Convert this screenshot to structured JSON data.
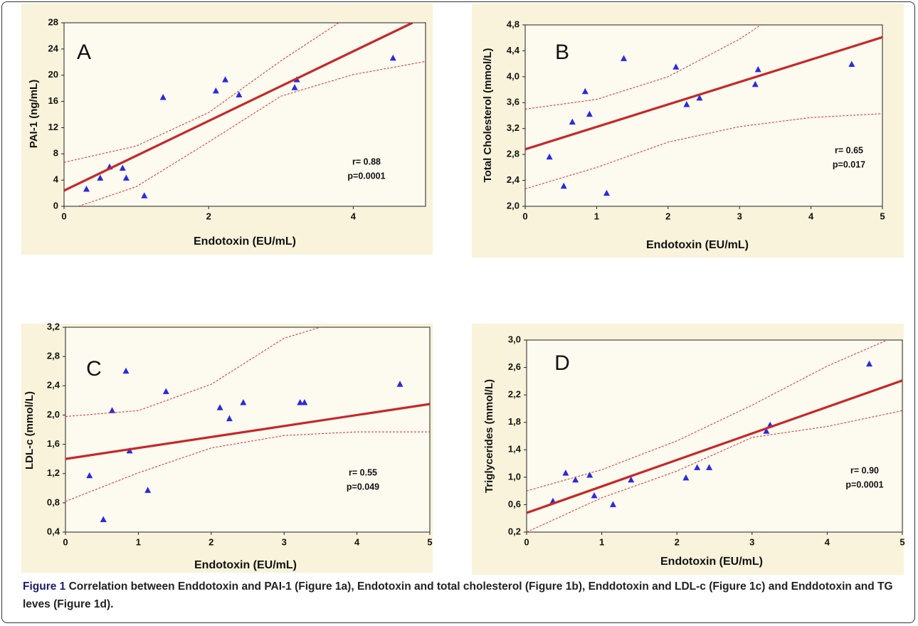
{
  "chart_data": [
    {
      "type": "scatter",
      "panel_label": "A",
      "xlabel": "Endotoxin (EU/mL)",
      "ylabel": "PAI-1 (ng/mL)",
      "xlim": [
        0,
        5
      ],
      "ylim": [
        0,
        28
      ],
      "xticks": [
        0,
        2,
        4
      ],
      "yticks": [
        0,
        4,
        8,
        12,
        16,
        20,
        24,
        28
      ],
      "annotations": [
        "r=  0.88",
        "p=0.0001"
      ],
      "series": [
        {
          "type": "scatter",
          "color": "#2a2ae0",
          "x": [
            0.31,
            0.5,
            0.63,
            0.81,
            0.86,
            1.11,
            1.37,
            2.1,
            2.23,
            2.42,
            3.19,
            3.22,
            4.55
          ],
          "values": [
            2.6,
            4.3,
            6.0,
            5.8,
            4.3,
            1.6,
            16.6,
            17.6,
            19.3,
            17.0,
            18.1,
            19.3,
            22.6
          ]
        },
        {
          "type": "line",
          "color": "#c62828",
          "style": "solid",
          "x": [
            0,
            4.82
          ],
          "values": [
            2.4,
            28
          ]
        },
        {
          "type": "line",
          "color": "#d32f2f",
          "style": "dashed",
          "x": [
            0,
            1,
            2,
            3,
            3.8
          ],
          "values": [
            6.7,
            9.2,
            14.3,
            22.2,
            28
          ]
        },
        {
          "type": "line",
          "color": "#d32f2f",
          "style": "dashed",
          "x": [
            0.2,
            1,
            2,
            3,
            4,
            5
          ],
          "values": [
            0,
            3.0,
            9.8,
            16.8,
            20.1,
            22.1
          ]
        }
      ]
    },
    {
      "type": "scatter",
      "panel_label": "B",
      "xlabel": "Endotoxin (EU/mL)",
      "ylabel": "Total Cholesterol (mmol/L)",
      "xlim": [
        0,
        5
      ],
      "ylim": [
        2.0,
        4.8
      ],
      "xticks": [
        0,
        1,
        2,
        3,
        4,
        5
      ],
      "yticks": [
        {
          "value": 2.0,
          "label": "2,0"
        },
        {
          "value": 2.4,
          "label": "2,4"
        },
        {
          "value": 2.8,
          "label": "2,8"
        },
        {
          "value": 3.2,
          "label": "3,2"
        },
        {
          "value": 3.6,
          "label": "3,6"
        },
        {
          "value": 4.0,
          "label": "4,0"
        },
        {
          "value": 4.4,
          "label": "4,4"
        },
        {
          "value": 4.8,
          "label": "4,8"
        }
      ],
      "annotations": [
        "r= 0.65",
        "p=0.017"
      ],
      "series": [
        {
          "type": "scatter",
          "color": "#2a2ae0",
          "x": [
            0.34,
            0.54,
            0.66,
            0.84,
            0.9,
            1.14,
            1.38,
            2.11,
            2.26,
            2.44,
            3.22,
            3.26,
            4.57
          ],
          "values": [
            2.76,
            2.31,
            3.3,
            3.77,
            3.42,
            2.2,
            4.28,
            4.15,
            3.57,
            3.67,
            3.88,
            4.11,
            4.19
          ]
        },
        {
          "type": "line",
          "color": "#c62828",
          "style": "solid",
          "x": [
            0,
            5
          ],
          "values": [
            2.88,
            4.61
          ]
        },
        {
          "type": "line",
          "color": "#d32f2f",
          "style": "dashed",
          "x": [
            0,
            1,
            2,
            3,
            3.3
          ],
          "values": [
            3.5,
            3.65,
            4.0,
            4.58,
            4.8
          ]
        },
        {
          "type": "line",
          "color": "#d32f2f",
          "style": "dashed",
          "x": [
            0,
            1,
            2,
            3,
            4,
            5
          ],
          "values": [
            2.27,
            2.6,
            2.99,
            3.23,
            3.37,
            3.43
          ]
        }
      ]
    },
    {
      "type": "scatter",
      "panel_label": "C",
      "xlabel": "Endotoxin (EU/mL)",
      "ylabel": "LDL-c (mmol/L)",
      "xlim": [
        0,
        5
      ],
      "ylim": [
        0.4,
        3.2
      ],
      "xticks": [
        0,
        1,
        2,
        3,
        4,
        5
      ],
      "yticks": [
        {
          "value": 0.4,
          "label": "0,4"
        },
        {
          "value": 0.8,
          "label": "0,8"
        },
        {
          "value": 1.2,
          "label": "1,2"
        },
        {
          "value": 1.6,
          "label": "1,6"
        },
        {
          "value": 2.0,
          "label": "2,0"
        },
        {
          "value": 2.4,
          "label": "2,4"
        },
        {
          "value": 2.8,
          "label": "2,8"
        },
        {
          "value": 3.2,
          "label": "3,2"
        }
      ],
      "annotations": [
        "r= 0.55",
        "p=0.049"
      ],
      "series": [
        {
          "type": "scatter",
          "color": "#2a2ae0",
          "x": [
            0.33,
            0.52,
            0.64,
            0.83,
            0.88,
            1.13,
            1.38,
            2.12,
            2.25,
            2.44,
            3.22,
            3.28,
            4.59
          ],
          "values": [
            1.17,
            0.57,
            2.06,
            2.6,
            1.51,
            0.97,
            2.32,
            2.1,
            1.95,
            2.17,
            2.17,
            2.17,
            2.42
          ]
        },
        {
          "type": "line",
          "color": "#c62828",
          "style": "solid",
          "x": [
            0,
            5
          ],
          "values": [
            1.4,
            2.15
          ]
        },
        {
          "type": "line",
          "color": "#d32f2f",
          "style": "dashed",
          "x": [
            0,
            1,
            2,
            3,
            3.5
          ],
          "values": [
            1.98,
            2.06,
            2.42,
            3.05,
            3.2
          ]
        },
        {
          "type": "line",
          "color": "#d32f2f",
          "style": "dashed",
          "x": [
            0,
            1,
            2,
            3,
            4,
            5
          ],
          "values": [
            0.82,
            1.21,
            1.55,
            1.72,
            1.77,
            1.77
          ]
        }
      ]
    },
    {
      "type": "scatter",
      "panel_label": "D",
      "xlabel": "Endotoxin (EU/mL)",
      "ylabel": "Triglycerides (mmol/L)",
      "xlim": [
        0,
        5
      ],
      "ylim": [
        0.2,
        3.0
      ],
      "xticks": [
        0,
        1,
        2,
        3,
        4,
        5
      ],
      "yticks": [
        {
          "value": 0.2,
          "label": "0,2"
        },
        {
          "value": 0.6,
          "label": "0,6"
        },
        {
          "value": 1.0,
          "label": "1,0"
        },
        {
          "value": 1.4,
          "label": "1,4"
        },
        {
          "value": 1.8,
          "label": "1,8"
        },
        {
          "value": 2.2,
          "label": "2,2"
        },
        {
          "value": 2.6,
          "label": "2,6"
        },
        {
          "value": 3.0,
          "label": "3,0"
        }
      ],
      "annotations": [
        "r= 0.90",
        "p=0.0001"
      ],
      "series": [
        {
          "type": "scatter",
          "color": "#2a2ae0",
          "x": [
            0.35,
            0.52,
            0.65,
            0.84,
            0.9,
            1.15,
            1.39,
            2.12,
            2.27,
            2.43,
            3.19,
            3.24,
            4.56
          ],
          "values": [
            0.65,
            1.06,
            0.96,
            1.03,
            0.73,
            0.6,
            0.96,
            0.99,
            1.14,
            1.14,
            1.67,
            1.76,
            2.65
          ]
        },
        {
          "type": "line",
          "color": "#c62828",
          "style": "solid",
          "x": [
            0,
            5
          ],
          "values": [
            0.48,
            2.41
          ]
        },
        {
          "type": "line",
          "color": "#d32f2f",
          "style": "dashed",
          "x": [
            0,
            1,
            2,
            3,
            4,
            4.8
          ],
          "values": [
            0.8,
            1.11,
            1.53,
            2.05,
            2.62,
            3.0
          ]
        },
        {
          "type": "line",
          "color": "#d32f2f",
          "style": "dashed",
          "x": [
            0,
            1,
            2,
            3,
            4,
            5
          ],
          "values": [
            0.2,
            0.7,
            1.09,
            1.58,
            1.74,
            1.97
          ]
        }
      ]
    }
  ],
  "caption": {
    "label": "Figure 1",
    "text": "Correlation between Enddotoxin and PAI-1 (Figure 1a), Endotoxin and total cholesterol (Figure 1b), Enddotoxin and LDL-c (Figure 1c) and Enddotoxin and TG leves (Figure 1d)."
  }
}
